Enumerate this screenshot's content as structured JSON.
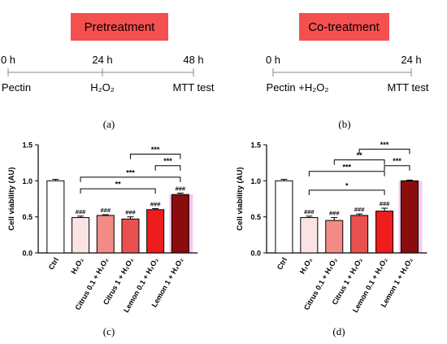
{
  "colors": {
    "badge_bg": "#f4504f",
    "ctrl": "#ffffff",
    "h2o2": "#fbe3e3",
    "citrus_01": "#f28b85",
    "citrus_1": "#e8514f",
    "lemon_01": "#ee1c1c",
    "lemon_1": "#8b0c0c",
    "highlight_a": "#f5c8ec",
    "highlight_b": "#f7c9ee"
  },
  "panels": [
    {
      "id": "a",
      "badge": "Pretreatment",
      "timeline": {
        "ticks": [
          {
            "time": "0 h",
            "event": "Pectin"
          },
          {
            "time": "24 h",
            "event": "H₂O₂"
          },
          {
            "time": "48 h",
            "event": "MTT test"
          }
        ]
      },
      "caption": "(a)"
    },
    {
      "id": "b",
      "badge": "Co-treatment",
      "timeline": {
        "ticks": [
          {
            "time": "0 h",
            "event": "Pectin +H₂O₂"
          },
          {
            "time": "24 h",
            "event": "MTT test"
          }
        ]
      },
      "caption": "(b)"
    }
  ],
  "chart_data": [
    {
      "panel": "(c)",
      "type": "bar",
      "ylabel": "Cell viability (AU)",
      "ylim": [
        0,
        1.5
      ],
      "yticks": [
        "0.0",
        "0.5",
        "1.0",
        "1.5"
      ],
      "categories": [
        "Ctrl",
        "H₂O₂",
        "Citrus 0.1 + H₂O₂",
        "Citrus 1 + H₂O₂",
        "Lemon 0.1 + H₂O₂",
        "Lemon 1 + H₂O₂"
      ],
      "values": [
        1.0,
        0.49,
        0.52,
        0.47,
        0.6,
        0.81
      ],
      "errors": [
        0.02,
        0.02,
        0.01,
        0.03,
        0.015,
        0.02
      ],
      "marks": [
        "",
        "###",
        "###",
        "###",
        "###",
        "###"
      ],
      "highlight_category": 5,
      "brackets": [
        {
          "from": 4,
          "to": 5,
          "label": "***",
          "y": 1.21
        },
        {
          "from": 3,
          "to": 5,
          "label": "***",
          "y": 1.37
        },
        {
          "from": 1,
          "to": 5,
          "label": "***",
          "y": 1.05
        },
        {
          "from": 1,
          "to": 4,
          "label": "**",
          "y": 0.89
        }
      ]
    },
    {
      "panel": "(d)",
      "type": "bar",
      "ylabel": "Cell viability (AU)",
      "ylim": [
        0,
        1.5
      ],
      "yticks": [
        "0.0",
        "0.5",
        "1.0",
        "1.5"
      ],
      "categories": [
        "Ctrl",
        "H₂O₂",
        "Citrus 0.1 + H₂O₂",
        "Citrus 1 + H₂O₂",
        "Lemon 0.1 + H₂O₂",
        "Lemon 1 + H₂O₂"
      ],
      "values": [
        1.0,
        0.49,
        0.45,
        0.52,
        0.58,
        1.0
      ],
      "errors": [
        0.02,
        0.02,
        0.04,
        0.02,
        0.04,
        0.01
      ],
      "marks": [
        "",
        "###",
        "###",
        "###",
        "###",
        ""
      ],
      "highlight_category": 5,
      "brackets": [
        {
          "from": 4,
          "to": 5,
          "label": "***",
          "y": 1.21
        },
        {
          "from": 3,
          "to": 5,
          "label": "***",
          "y": 1.44
        },
        {
          "from": 2,
          "to": 4,
          "label": "**",
          "y": 1.29
        },
        {
          "from": 1,
          "to": 4,
          "label": "***",
          "y": 1.13
        },
        {
          "from": 1,
          "to": 4,
          "label": "*",
          "y": 0.87
        }
      ]
    }
  ],
  "captions": [
    "(c)",
    "(d)"
  ]
}
